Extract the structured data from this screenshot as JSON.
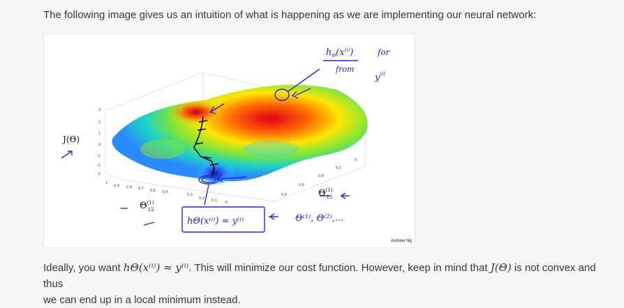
{
  "intro": {
    "text": "The following image gives us an intuition of what is happening as we are implementing our neural network:"
  },
  "figure": {
    "j_label": "J(Θ)",
    "credit": "Andrew Ng",
    "top_note_line1": "h",
    "top_note_text": "for",
    "top_note_from": "from",
    "theta12": "Θ",
    "theta12_sub": "12",
    "theta11": "Θ",
    "theta11_sub": "11",
    "theta_list": "Θ⁽¹⁾, Θ⁽²⁾,...",
    "box_formula": "hΘ(x⁽ⁱ⁾) ≈ y⁽ⁱ⁾"
  },
  "outro": {
    "p1": "Ideally, you want ",
    "hx": "hΘ(x⁽ⁱ⁾) ≈ y⁽ⁱ⁾",
    "p2": ". This will minimize our cost function. However, keep in mind that ",
    "jt": "J(Θ)",
    "p3": " is not convex and thus",
    "line2": "we can end up in a local minimum instead."
  }
}
